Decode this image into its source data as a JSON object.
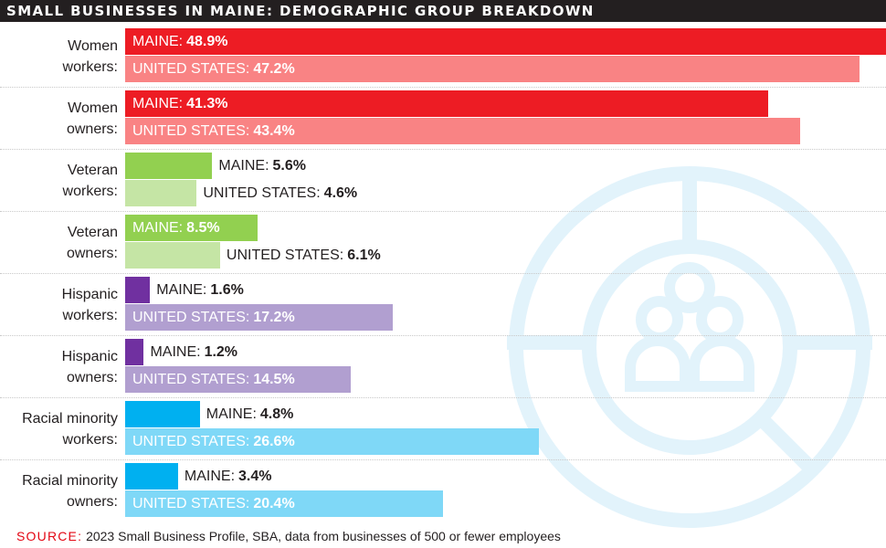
{
  "title": "SMALL BUSINESSES IN MAINE: DEMOGRAPHIC GROUP BREAKDOWN",
  "source_key": "SOURCE:",
  "source_text": "2023 Small Business Profile, SBA, data from businesses of 500 or fewer employees",
  "background_icon": "people-group-donut-icon",
  "chart_data": {
    "type": "bar",
    "orientation": "horizontal",
    "categories": [
      [
        "Women",
        "workers:"
      ],
      [
        "Women",
        "owners:"
      ],
      [
        "Veteran",
        "workers:"
      ],
      [
        "Veteran",
        "owners:"
      ],
      [
        "Hispanic",
        "workers:"
      ],
      [
        "Hispanic",
        "owners:"
      ],
      [
        "Racial minority",
        "workers:"
      ],
      [
        "Racial minority",
        "owners:"
      ]
    ],
    "series": [
      {
        "name": "MAINE",
        "values": [
          48.9,
          41.3,
          5.6,
          8.5,
          1.6,
          1.2,
          4.8,
          3.4
        ]
      },
      {
        "name": "UNITED STATES",
        "values": [
          47.2,
          43.4,
          4.6,
          6.1,
          17.2,
          14.5,
          26.6,
          20.4
        ]
      }
    ],
    "value_format": "%",
    "xlim": [
      0,
      48.9
    ],
    "colors": {
      "maine": [
        "#ed1c24",
        "#ed1c24",
        "#92d050",
        "#92d050",
        "#7030a0",
        "#7030a0",
        "#00b0f0",
        "#00b0f0"
      ],
      "us": [
        "#f98384",
        "#f98384",
        "#c5e5a5",
        "#c5e5a5",
        "#b19fd0",
        "#b19fd0",
        "#7fd8f7",
        "#7fd8f7"
      ]
    }
  }
}
